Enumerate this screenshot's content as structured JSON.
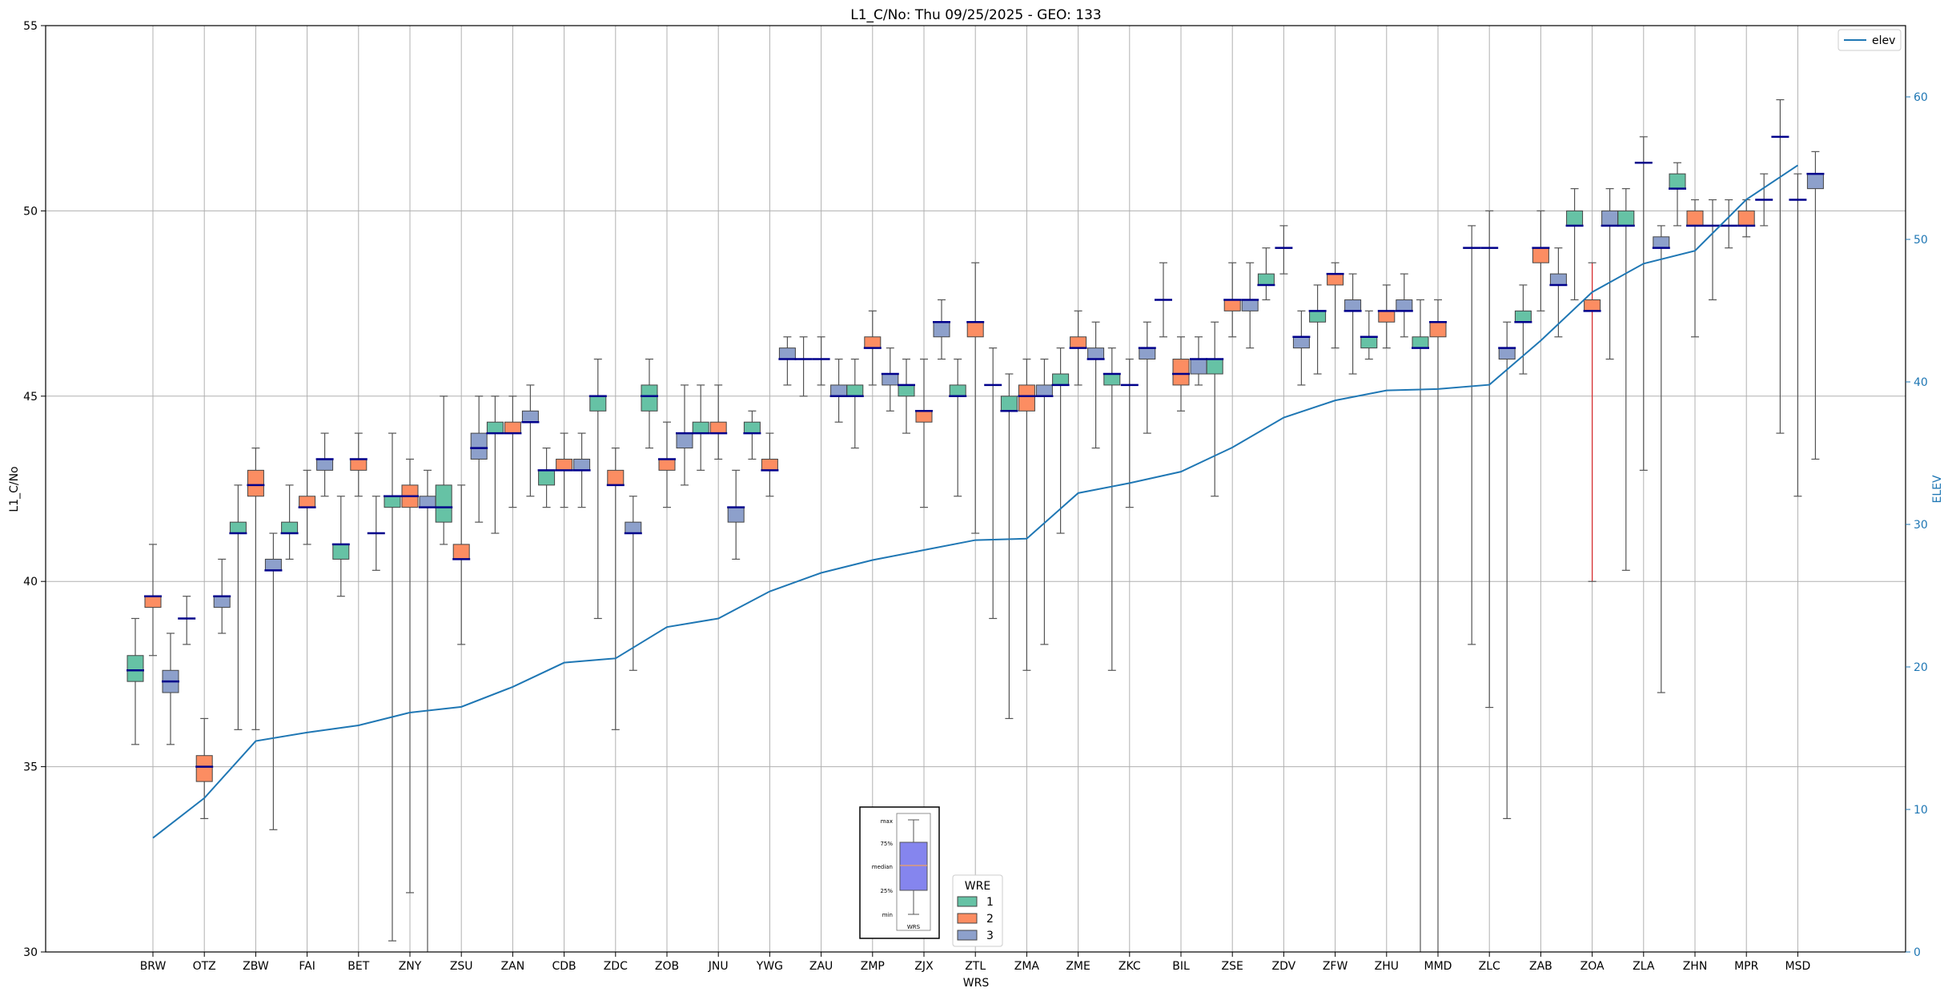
{
  "chart_data": {
    "type": "box",
    "title": "L1_C/No: Thu 09/25/2025 - GEO: 133",
    "xlabel": "WRS",
    "ylabel": "L1_C/No",
    "y2label": "ELEV",
    "ylim": [
      30,
      55
    ],
    "y2lim": [
      0,
      65
    ],
    "yticks": [
      30,
      35,
      40,
      45,
      50,
      55
    ],
    "y2ticks": [
      0,
      10,
      20,
      30,
      40,
      50,
      60
    ],
    "grid": true,
    "categories": [
      "BRW",
      "OTZ",
      "ZBW",
      "FAI",
      "BET",
      "ZNY",
      "ZSU",
      "ZAN",
      "CDB",
      "ZDC",
      "ZOB",
      "JNU",
      "YWG",
      "ZAU",
      "ZMP",
      "ZJX",
      "ZTL",
      "ZMA",
      "ZME",
      "ZKC",
      "BIL",
      "ZSE",
      "ZDV",
      "ZFW",
      "ZHU",
      "MMD",
      "ZLC",
      "ZAB",
      "ZOA",
      "ZLA",
      "ZHN",
      "MPR",
      "MSD"
    ],
    "colors": {
      "1": "#66c2a5",
      "2": "#fc8d62",
      "3": "#8da0cb",
      "elev": "#1f77b4",
      "median": "#00008b",
      "whisker": "#555555",
      "grid": "#b0b0b0"
    },
    "legend_line": {
      "label": "elev",
      "placement": "top-right"
    },
    "legend_boxes": {
      "title": "WRE",
      "placement": "bottom-center",
      "entries": [
        "1",
        "2",
        "3"
      ]
    },
    "legend_box_diagram": {
      "labels": [
        "max",
        "75%",
        "median",
        "25%",
        "min"
      ],
      "xtick": "WRS"
    },
    "boxes": [
      {
        "wrs": "BRW",
        "wre": "1",
        "min": 35.6,
        "q1": 37.3,
        "median": 37.6,
        "q3": 38.0,
        "max": 39.0
      },
      {
        "wrs": "BRW",
        "wre": "2",
        "min": 38.0,
        "q1": 39.3,
        "median": 39.6,
        "q3": 39.6,
        "max": 41.0
      },
      {
        "wrs": "BRW",
        "wre": "3",
        "min": 35.6,
        "q1": 37.0,
        "median": 37.3,
        "q3": 37.6,
        "max": 38.6
      },
      {
        "wrs": "OTZ",
        "wre": "1",
        "min": 38.3,
        "q1": 39.0,
        "median": 39.0,
        "q3": 39.0,
        "max": 39.6
      },
      {
        "wrs": "OTZ",
        "wre": "2",
        "min": 33.6,
        "q1": 34.6,
        "median": 35.0,
        "q3": 35.3,
        "max": 36.3
      },
      {
        "wrs": "OTZ",
        "wre": "3",
        "min": 38.6,
        "q1": 39.3,
        "median": 39.6,
        "q3": 39.6,
        "max": 40.6
      },
      {
        "wrs": "ZBW",
        "wre": "1",
        "min": 36.0,
        "q1": 41.3,
        "median": 41.3,
        "q3": 41.6,
        "max": 42.6
      },
      {
        "wrs": "ZBW",
        "wre": "2",
        "min": 36.0,
        "q1": 42.3,
        "median": 42.6,
        "q3": 43.0,
        "max": 43.6
      },
      {
        "wrs": "ZBW",
        "wre": "3",
        "min": 33.3,
        "q1": 40.3,
        "median": 40.3,
        "q3": 40.6,
        "max": 41.3
      },
      {
        "wrs": "FAI",
        "wre": "1",
        "min": 40.6,
        "q1": 41.3,
        "median": 41.3,
        "q3": 41.6,
        "max": 42.6
      },
      {
        "wrs": "FAI",
        "wre": "2",
        "min": 41.0,
        "q1": 42.0,
        "median": 42.0,
        "q3": 42.3,
        "max": 43.0
      },
      {
        "wrs": "FAI",
        "wre": "3",
        "min": 42.3,
        "q1": 43.0,
        "median": 43.3,
        "q3": 43.3,
        "max": 44.0
      },
      {
        "wrs": "BET",
        "wre": "1",
        "min": 39.6,
        "q1": 40.6,
        "median": 41.0,
        "q3": 41.0,
        "max": 42.3
      },
      {
        "wrs": "BET",
        "wre": "2",
        "min": 42.3,
        "q1": 43.0,
        "median": 43.3,
        "q3": 43.3,
        "max": 44.0
      },
      {
        "wrs": "BET",
        "wre": "3",
        "min": 40.3,
        "q1": 41.3,
        "median": 41.3,
        "q3": 41.3,
        "max": 42.3
      },
      {
        "wrs": "ZNY",
        "wre": "1",
        "min": 30.3,
        "q1": 42.0,
        "median": 42.3,
        "q3": 42.3,
        "max": 44.0
      },
      {
        "wrs": "ZNY",
        "wre": "2",
        "min": 31.6,
        "q1": 42.0,
        "median": 42.3,
        "q3": 42.6,
        "max": 43.3
      },
      {
        "wrs": "ZNY",
        "wre": "3",
        "min": 30.0,
        "q1": 42.0,
        "median": 42.0,
        "q3": 42.3,
        "max": 43.0
      },
      {
        "wrs": "ZSU",
        "wre": "1",
        "min": 41.0,
        "q1": 41.6,
        "median": 42.0,
        "q3": 42.6,
        "max": 45.0
      },
      {
        "wrs": "ZSU",
        "wre": "2",
        "min": 38.3,
        "q1": 40.6,
        "median": 40.6,
        "q3": 41.0,
        "max": 42.6
      },
      {
        "wrs": "ZSU",
        "wre": "3",
        "min": 41.6,
        "q1": 43.3,
        "median": 43.6,
        "q3": 44.0,
        "max": 45.0
      },
      {
        "wrs": "ZAN",
        "wre": "1",
        "min": 41.3,
        "q1": 44.0,
        "median": 44.0,
        "q3": 44.3,
        "max": 45.0
      },
      {
        "wrs": "ZAN",
        "wre": "2",
        "min": 42.0,
        "q1": 44.0,
        "median": 44.0,
        "q3": 44.3,
        "max": 45.0
      },
      {
        "wrs": "ZAN",
        "wre": "3",
        "min": 42.3,
        "q1": 44.3,
        "median": 44.3,
        "q3": 44.6,
        "max": 45.3
      },
      {
        "wrs": "CDB",
        "wre": "1",
        "min": 42.0,
        "q1": 42.6,
        "median": 43.0,
        "q3": 43.0,
        "max": 43.6
      },
      {
        "wrs": "CDB",
        "wre": "2",
        "min": 42.0,
        "q1": 43.0,
        "median": 43.0,
        "q3": 43.3,
        "max": 44.0
      },
      {
        "wrs": "CDB",
        "wre": "3",
        "min": 42.0,
        "q1": 43.0,
        "median": 43.0,
        "q3": 43.3,
        "max": 44.0
      },
      {
        "wrs": "ZDC",
        "wre": "1",
        "min": 39.0,
        "q1": 44.6,
        "median": 45.0,
        "q3": 45.0,
        "max": 46.0
      },
      {
        "wrs": "ZDC",
        "wre": "2",
        "min": 36.0,
        "q1": 42.6,
        "median": 42.6,
        "q3": 43.0,
        "max": 43.6
      },
      {
        "wrs": "ZDC",
        "wre": "3",
        "min": 37.6,
        "q1": 41.3,
        "median": 41.3,
        "q3": 41.6,
        "max": 42.3
      },
      {
        "wrs": "ZOB",
        "wre": "1",
        "min": 43.6,
        "q1": 44.6,
        "median": 45.0,
        "q3": 45.3,
        "max": 46.0
      },
      {
        "wrs": "ZOB",
        "wre": "2",
        "min": 42.0,
        "q1": 43.0,
        "median": 43.3,
        "q3": 43.3,
        "max": 44.3
      },
      {
        "wrs": "ZOB",
        "wre": "3",
        "min": 42.6,
        "q1": 43.6,
        "median": 44.0,
        "q3": 44.0,
        "max": 45.3
      },
      {
        "wrs": "JNU",
        "wre": "1",
        "min": 43.0,
        "q1": 44.0,
        "median": 44.0,
        "q3": 44.3,
        "max": 45.3
      },
      {
        "wrs": "JNU",
        "wre": "2",
        "min": 43.3,
        "q1": 44.0,
        "median": 44.0,
        "q3": 44.3,
        "max": 45.3
      },
      {
        "wrs": "JNU",
        "wre": "3",
        "min": 40.6,
        "q1": 41.6,
        "median": 42.0,
        "q3": 42.0,
        "max": 43.0
      },
      {
        "wrs": "YWG",
        "wre": "1",
        "min": 43.3,
        "q1": 44.0,
        "median": 44.0,
        "q3": 44.3,
        "max": 44.6
      },
      {
        "wrs": "YWG",
        "wre": "2",
        "min": 42.3,
        "q1": 43.0,
        "median": 43.0,
        "q3": 43.3,
        "max": 44.0
      },
      {
        "wrs": "YWG",
        "wre": "3",
        "min": 45.3,
        "q1": 46.0,
        "median": 46.0,
        "q3": 46.3,
        "max": 46.6
      },
      {
        "wrs": "ZAU",
        "wre": "1",
        "min": 45.0,
        "q1": 46.0,
        "median": 46.0,
        "q3": 46.0,
        "max": 46.6
      },
      {
        "wrs": "ZAU",
        "wre": "2",
        "min": 45.3,
        "q1": 46.0,
        "median": 46.0,
        "q3": 46.0,
        "max": 46.6
      },
      {
        "wrs": "ZAU",
        "wre": "3",
        "min": 44.3,
        "q1": 45.0,
        "median": 45.0,
        "q3": 45.3,
        "max": 46.0
      },
      {
        "wrs": "ZMP",
        "wre": "1",
        "min": 43.6,
        "q1": 45.0,
        "median": 45.0,
        "q3": 45.3,
        "max": 46.0
      },
      {
        "wrs": "ZMP",
        "wre": "2",
        "min": 45.3,
        "q1": 46.3,
        "median": 46.3,
        "q3": 46.6,
        "max": 47.3
      },
      {
        "wrs": "ZMP",
        "wre": "3",
        "min": 44.6,
        "q1": 45.3,
        "median": 45.6,
        "q3": 45.6,
        "max": 46.3
      },
      {
        "wrs": "ZJX",
        "wre": "1",
        "min": 44.0,
        "q1": 45.0,
        "median": 45.3,
        "q3": 45.3,
        "max": 46.0
      },
      {
        "wrs": "ZJX",
        "wre": "2",
        "min": 42.0,
        "q1": 44.3,
        "median": 44.6,
        "q3": 44.6,
        "max": 46.0
      },
      {
        "wrs": "ZJX",
        "wre": "3",
        "min": 46.0,
        "q1": 46.6,
        "median": 47.0,
        "q3": 47.0,
        "max": 47.6
      },
      {
        "wrs": "ZTL",
        "wre": "1",
        "min": 42.3,
        "q1": 45.0,
        "median": 45.0,
        "q3": 45.3,
        "max": 46.0
      },
      {
        "wrs": "ZTL",
        "wre": "2",
        "min": 41.3,
        "q1": 46.6,
        "median": 47.0,
        "q3": 47.0,
        "max": 48.6
      },
      {
        "wrs": "ZTL",
        "wre": "3",
        "min": 39.0,
        "q1": 45.3,
        "median": 45.3,
        "q3": 45.3,
        "max": 46.3
      },
      {
        "wrs": "ZMA",
        "wre": "1",
        "min": 36.3,
        "q1": 44.6,
        "median": 44.6,
        "q3": 45.0,
        "max": 45.6
      },
      {
        "wrs": "ZMA",
        "wre": "2",
        "min": 37.6,
        "q1": 44.6,
        "median": 45.0,
        "q3": 45.3,
        "max": 46.0
      },
      {
        "wrs": "ZMA",
        "wre": "3",
        "min": 38.3,
        "q1": 45.0,
        "median": 45.0,
        "q3": 45.3,
        "max": 46.0
      },
      {
        "wrs": "ZME",
        "wre": "1",
        "min": 41.3,
        "q1": 45.3,
        "median": 45.3,
        "q3": 45.6,
        "max": 46.3
      },
      {
        "wrs": "ZME",
        "wre": "2",
        "min": 45.3,
        "q1": 46.3,
        "median": 46.3,
        "q3": 46.6,
        "max": 47.3
      },
      {
        "wrs": "ZME",
        "wre": "3",
        "min": 43.6,
        "q1": 46.0,
        "median": 46.0,
        "q3": 46.3,
        "max": 47.0
      },
      {
        "wrs": "ZKC",
        "wre": "1",
        "min": 37.6,
        "q1": 45.3,
        "median": 45.6,
        "q3": 45.6,
        "max": 46.3
      },
      {
        "wrs": "ZKC",
        "wre": "2",
        "min": 42.0,
        "q1": 45.3,
        "median": 45.3,
        "q3": 45.3,
        "max": 46.0
      },
      {
        "wrs": "ZKC",
        "wre": "3",
        "min": 44.0,
        "q1": 46.0,
        "median": 46.3,
        "q3": 46.3,
        "max": 47.0
      },
      {
        "wrs": "BIL",
        "wre": "1",
        "min": 46.6,
        "q1": 47.6,
        "median": 47.6,
        "q3": 47.6,
        "max": 48.6
      },
      {
        "wrs": "BIL",
        "wre": "2",
        "min": 44.6,
        "q1": 45.3,
        "median": 45.6,
        "q3": 46.0,
        "max": 46.6
      },
      {
        "wrs": "BIL",
        "wre": "3",
        "min": 45.3,
        "q1": 45.6,
        "median": 46.0,
        "q3": 46.0,
        "max": 46.6
      },
      {
        "wrs": "ZSE",
        "wre": "1",
        "min": 42.3,
        "q1": 45.6,
        "median": 46.0,
        "q3": 46.0,
        "max": 47.0
      },
      {
        "wrs": "ZSE",
        "wre": "2",
        "min": 46.6,
        "q1": 47.3,
        "median": 47.6,
        "q3": 47.6,
        "max": 48.6
      },
      {
        "wrs": "ZSE",
        "wre": "3",
        "min": 46.3,
        "q1": 47.3,
        "median": 47.6,
        "q3": 47.6,
        "max": 48.6
      },
      {
        "wrs": "ZDV",
        "wre": "1",
        "min": 47.6,
        "q1": 48.0,
        "median": 48.0,
        "q3": 48.3,
        "max": 49.0
      },
      {
        "wrs": "ZDV",
        "wre": "2",
        "min": 48.3,
        "q1": 49.0,
        "median": 49.0,
        "q3": 49.0,
        "max": 49.6
      },
      {
        "wrs": "ZDV",
        "wre": "3",
        "min": 45.3,
        "q1": 46.3,
        "median": 46.6,
        "q3": 46.6,
        "max": 47.3
      },
      {
        "wrs": "ZFW",
        "wre": "1",
        "min": 45.6,
        "q1": 47.0,
        "median": 47.3,
        "q3": 47.3,
        "max": 48.0
      },
      {
        "wrs": "ZFW",
        "wre": "2",
        "min": 46.3,
        "q1": 48.0,
        "median": 48.3,
        "q3": 48.3,
        "max": 48.6
      },
      {
        "wrs": "ZFW",
        "wre": "3",
        "min": 45.6,
        "q1": 47.3,
        "median": 47.3,
        "q3": 47.6,
        "max": 48.3
      },
      {
        "wrs": "ZHU",
        "wre": "1",
        "min": 46.0,
        "q1": 46.3,
        "median": 46.6,
        "q3": 46.6,
        "max": 47.3
      },
      {
        "wrs": "ZHU",
        "wre": "2",
        "min": 46.3,
        "q1": 47.0,
        "median": 47.3,
        "q3": 47.3,
        "max": 48.0
      },
      {
        "wrs": "ZHU",
        "wre": "3",
        "min": 46.6,
        "q1": 47.3,
        "median": 47.3,
        "q3": 47.6,
        "max": 48.3
      },
      {
        "wrs": "MMD",
        "wre": "1",
        "min": 30.0,
        "q1": 46.3,
        "median": 46.3,
        "q3": 46.6,
        "max": 47.6
      },
      {
        "wrs": "MMD",
        "wre": "2",
        "min": 30.0,
        "q1": 46.6,
        "median": 47.0,
        "q3": 47.0,
        "max": 47.6
      },
      {
        "wrs": "ZLC",
        "wre": "1",
        "min": 38.3,
        "q1": 49.0,
        "median": 49.0,
        "q3": 49.0,
        "max": 49.6
      },
      {
        "wrs": "ZLC",
        "wre": "2",
        "min": 36.6,
        "q1": 49.0,
        "median": 49.0,
        "q3": 49.0,
        "max": 50.0
      },
      {
        "wrs": "ZLC",
        "wre": "3",
        "min": 33.6,
        "q1": 46.0,
        "median": 46.3,
        "q3": 46.3,
        "max": 47.0
      },
      {
        "wrs": "ZAB",
        "wre": "1",
        "min": 45.6,
        "q1": 47.0,
        "median": 47.0,
        "q3": 47.3,
        "max": 48.0
      },
      {
        "wrs": "ZAB",
        "wre": "2",
        "min": 47.3,
        "q1": 48.6,
        "median": 49.0,
        "q3": 49.0,
        "max": 50.0
      },
      {
        "wrs": "ZAB",
        "wre": "3",
        "min": 46.6,
        "q1": 48.0,
        "median": 48.0,
        "q3": 48.3,
        "max": 49.0
      },
      {
        "wrs": "ZOA",
        "wre": "1",
        "min": 47.6,
        "q1": 49.6,
        "median": 49.6,
        "q3": 50.0,
        "max": 50.6
      },
      {
        "wrs": "ZOA",
        "wre": "2",
        "min": 40.0,
        "q1": 47.3,
        "median": 47.3,
        "q3": 47.6,
        "max": 48.6
      },
      {
        "wrs": "ZOA",
        "wre": "3",
        "min": 46.0,
        "q1": 49.6,
        "median": 49.6,
        "q3": 50.0,
        "max": 50.6
      },
      {
        "wrs": "ZLA",
        "wre": "1",
        "min": 40.3,
        "q1": 49.6,
        "median": 49.6,
        "q3": 50.0,
        "max": 50.6
      },
      {
        "wrs": "ZLA",
        "wre": "2",
        "min": 43.0,
        "q1": 51.3,
        "median": 51.3,
        "q3": 51.3,
        "max": 52.0
      },
      {
        "wrs": "ZLA",
        "wre": "3",
        "min": 37.0,
        "q1": 49.0,
        "median": 49.0,
        "q3": 49.3,
        "max": 49.6
      },
      {
        "wrs": "ZHN",
        "wre": "1",
        "min": 49.6,
        "q1": 50.6,
        "median": 50.6,
        "q3": 51.0,
        "max": 51.3
      },
      {
        "wrs": "ZHN",
        "wre": "2",
        "min": 46.6,
        "q1": 49.6,
        "median": 49.6,
        "q3": 50.0,
        "max": 50.3
      },
      {
        "wrs": "ZHN",
        "wre": "3",
        "min": 47.6,
        "q1": 49.6,
        "median": 49.6,
        "q3": 49.6,
        "max": 50.3
      },
      {
        "wrs": "MPR",
        "wre": "1",
        "min": 49.0,
        "q1": 49.6,
        "median": 49.6,
        "q3": 49.6,
        "max": 50.3
      },
      {
        "wrs": "MPR",
        "wre": "2",
        "min": 49.3,
        "q1": 49.6,
        "median": 49.6,
        "q3": 50.0,
        "max": 50.3
      },
      {
        "wrs": "MPR",
        "wre": "3",
        "min": 49.6,
        "q1": 50.3,
        "median": 50.3,
        "q3": 50.3,
        "max": 51.0
      },
      {
        "wrs": "MSD",
        "wre": "1",
        "min": 44.0,
        "q1": 52.0,
        "median": 52.0,
        "q3": 52.0,
        "max": 53.0
      },
      {
        "wrs": "MSD",
        "wre": "2",
        "min": 42.3,
        "q1": 50.3,
        "median": 50.3,
        "q3": 50.3,
        "max": 51.0
      },
      {
        "wrs": "MSD",
        "wre": "3",
        "min": 43.3,
        "q1": 50.6,
        "median": 51.0,
        "q3": 51.0,
        "max": 51.6
      }
    ],
    "series": [
      {
        "name": "elev",
        "axis": "right",
        "x": [
          "BRW",
          "OTZ",
          "ZBW",
          "FAI",
          "BET",
          "ZNY",
          "ZSU",
          "ZAN",
          "CDB",
          "ZDC",
          "ZOB",
          "JNU",
          "YWG",
          "ZAU",
          "ZMP",
          "ZJX",
          "ZTL",
          "ZMA",
          "ZME",
          "ZKC",
          "BIL",
          "ZSE",
          "ZDV",
          "ZFW",
          "ZHU",
          "MMD",
          "ZLC",
          "ZAB",
          "ZOA",
          "ZLA",
          "ZHN",
          "MPR",
          "MSD"
        ],
        "values": [
          8.0,
          10.8,
          14.8,
          15.4,
          15.9,
          16.8,
          17.2,
          18.6,
          20.3,
          20.6,
          22.8,
          23.4,
          25.3,
          26.6,
          27.5,
          28.2,
          28.9,
          29.0,
          32.2,
          32.9,
          33.7,
          35.4,
          37.5,
          38.7,
          39.4,
          39.5,
          39.8,
          42.9,
          46.3,
          48.3,
          49.2,
          52.8,
          55.2
        ]
      }
    ]
  }
}
